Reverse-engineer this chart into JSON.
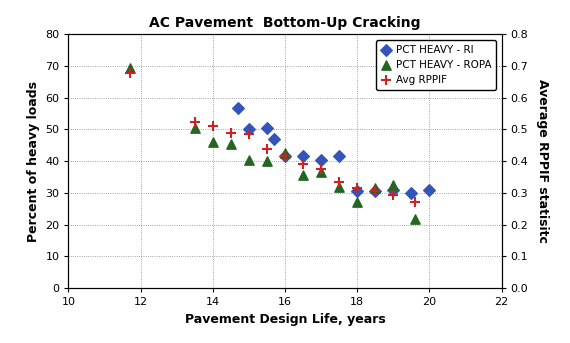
{
  "title": "AC Pavement  Bottom-Up Cracking",
  "xlabel": "Pavement Design Life, years",
  "ylabel_left": "Percent of heavy loads",
  "ylabel_right": "Average RPPIF statisitc",
  "xlim": [
    10,
    22
  ],
  "ylim_left": [
    0,
    80
  ],
  "ylim_right": [
    0,
    0.8
  ],
  "xticks": [
    10,
    12,
    14,
    16,
    18,
    20,
    22
  ],
  "yticks_left": [
    0,
    10,
    20,
    30,
    40,
    50,
    60,
    70,
    80
  ],
  "yticks_right": [
    0,
    0.1,
    0.2,
    0.3,
    0.4,
    0.5,
    0.6,
    0.7,
    0.8
  ],
  "RI_x": [
    14.7,
    15.0,
    15.5,
    15.7,
    16.0,
    16.5,
    17.0,
    17.5,
    18.0,
    18.5,
    19.0,
    19.5,
    20.0
  ],
  "RI_y": [
    56.75,
    50.0,
    50.5,
    47.0,
    41.5,
    41.5,
    40.5,
    41.5,
    30.5,
    30.5,
    31.0,
    30.0,
    31.01
  ],
  "ROPA_x": [
    11.7,
    13.5,
    14.0,
    14.5,
    15.0,
    15.5,
    16.0,
    16.5,
    17.0,
    17.5,
    18.0,
    18.5,
    19.0,
    19.6
  ],
  "ROPA_y": [
    69.52,
    50.5,
    46.0,
    45.5,
    40.5,
    40.0,
    42.5,
    35.5,
    36.5,
    32.0,
    27.0,
    31.5,
    32.5,
    21.78
  ],
  "RPPIF_x": [
    11.7,
    13.5,
    14.0,
    14.5,
    15.0,
    15.5,
    16.0,
    16.5,
    17.0,
    17.5,
    18.0,
    18.5,
    19.0,
    19.6
  ],
  "RPPIF_y": [
    0.6781,
    0.525,
    0.51,
    0.49,
    0.485,
    0.44,
    0.415,
    0.39,
    0.375,
    0.335,
    0.315,
    0.305,
    0.295,
    0.2725
  ],
  "RI_color": "#3355BB",
  "ROPA_color": "#226622",
  "RPPIF_color": "#CC2222",
  "legend_labels": [
    "PCT HEAVY - RI",
    "PCT HEAVY - ROPA",
    "Avg RPPIF"
  ]
}
